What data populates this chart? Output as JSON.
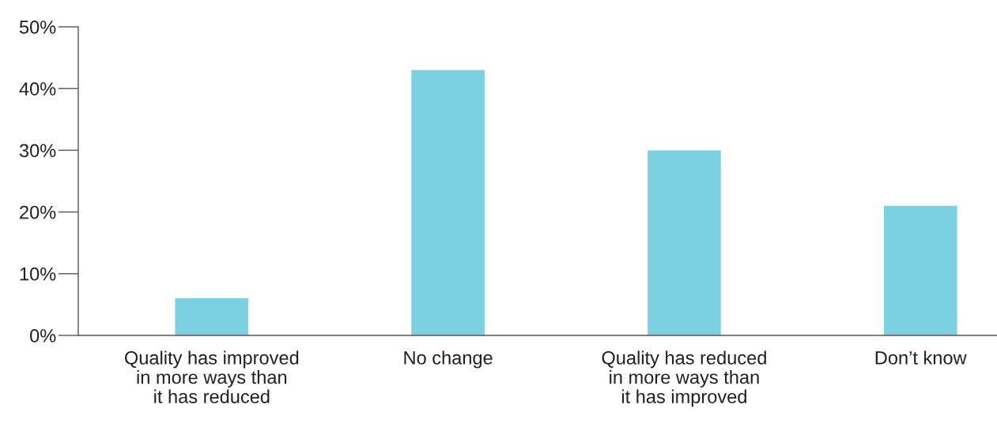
{
  "chart_data": {
    "type": "bar",
    "categories": [
      "Quality has improved\nin more ways than\nit has reduced",
      "No change",
      "Quality has reduced\nin more ways than\nit has improved",
      "Don’t know"
    ],
    "values": [
      6,
      43,
      30,
      21
    ],
    "color": "#7bd0e2",
    "ylim": [
      0,
      50
    ],
    "yticks": [
      {
        "value": 0,
        "label": "0%"
      },
      {
        "value": 10,
        "label": "10%"
      },
      {
        "value": 20,
        "label": "20%"
      },
      {
        "value": 30,
        "label": "30%"
      },
      {
        "value": 40,
        "label": "40%"
      },
      {
        "value": 50,
        "label": "50%"
      }
    ],
    "grid": false
  }
}
